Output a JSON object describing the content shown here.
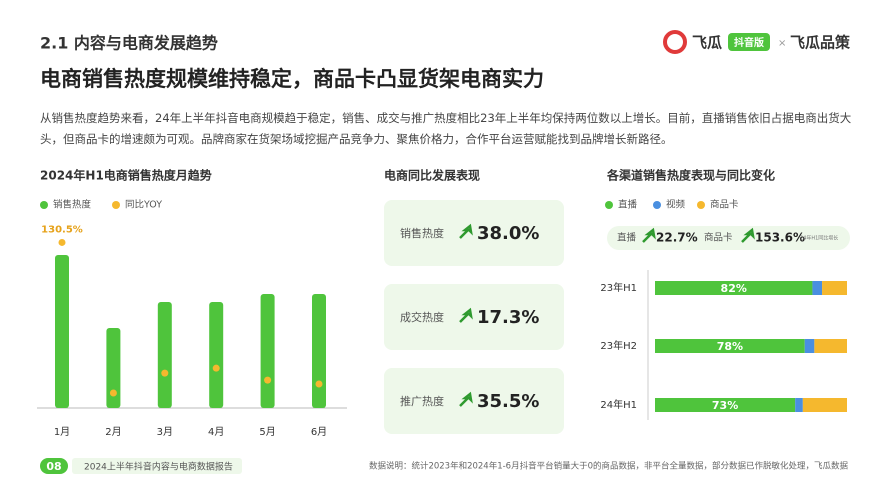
{
  "header": {
    "section": "2.1 内容与电商发展趋势",
    "brand": "飞瓜",
    "badge": "抖音版",
    "cross": "×",
    "brand2": "飞瓜品策"
  },
  "title": "电商销售热度规模维持稳定，商品卡凸显货架电商实力",
  "intro": "从销售热度趋势来看，24年上半年抖音电商规模趋于稳定，销售、成交与推广热度相比23年上半年均保持两位数以上增长。目前，直播销售依旧占据电商出货大头，但商品卡的增速颇为可观。品牌商家在货架场域挖掘产品竞争力、聚焦价格力，合作平台运营赋能找到品牌增长新路径。",
  "kpi": {
    "title": "电商同比发展表现",
    "items": [
      {
        "label": "销售热度",
        "value": "38.0%"
      },
      {
        "label": "成交热度",
        "value": "17.3%"
      },
      {
        "label": "推广热度",
        "value": "35.5%"
      }
    ]
  },
  "chart_data": [
    {
      "type": "bar",
      "title": "2024年H1电商销售热度月趋势",
      "categories": [
        "1月",
        "2月",
        "3月",
        "4月",
        "5月",
        "6月"
      ],
      "series": [
        {
          "name": "销售热度",
          "color": "#4fc43c",
          "values": [
            153,
            80,
            106,
            106,
            114,
            114
          ]
        },
        {
          "name": "同比YOY",
          "color": "#f5b82e",
          "type": "scatter",
          "axis": "y2",
          "values": [
            130.5,
            11.8,
            27.5,
            31.4,
            22,
            18.9
          ],
          "value_labels": [
            "130.5%",
            null,
            null,
            null,
            null,
            null
          ]
        }
      ],
      "ylim": [
        0,
        170
      ],
      "y2lim": [
        0,
        134
      ]
    },
    {
      "type": "stacked_barh",
      "title": "各渠道销售热度表现与同比变化",
      "categories": [
        "23年H1",
        "23年H2",
        "24年H1"
      ],
      "series": [
        {
          "name": "直播",
          "color": "#4fc43c",
          "values": [
            82,
            78,
            73
          ],
          "value_labels": [
            "82%",
            "78%",
            "73%"
          ]
        },
        {
          "name": "视频",
          "color": "#4a8fe0",
          "values": [
            5,
            5,
            4
          ]
        },
        {
          "name": "商品卡",
          "color": "#f5b82e",
          "values": [
            13,
            17,
            23
          ]
        }
      ],
      "xlim": [
        0,
        100
      ],
      "summary": {
        "items": [
          {
            "label": "直播",
            "value": "22.7%"
          },
          {
            "label": "商品卡",
            "value": "153.6%"
          }
        ],
        "note": "24年H1同比增长"
      }
    }
  ],
  "footer": {
    "page": "08",
    "report": "2024上半年抖音内容与电商数据报告",
    "note": "数据说明：统计2023年和2024年1-6月抖音平台销量大于0的商品数据，非平台全量数据，部分数据已作脱敏化处理，飞瓜数据"
  }
}
